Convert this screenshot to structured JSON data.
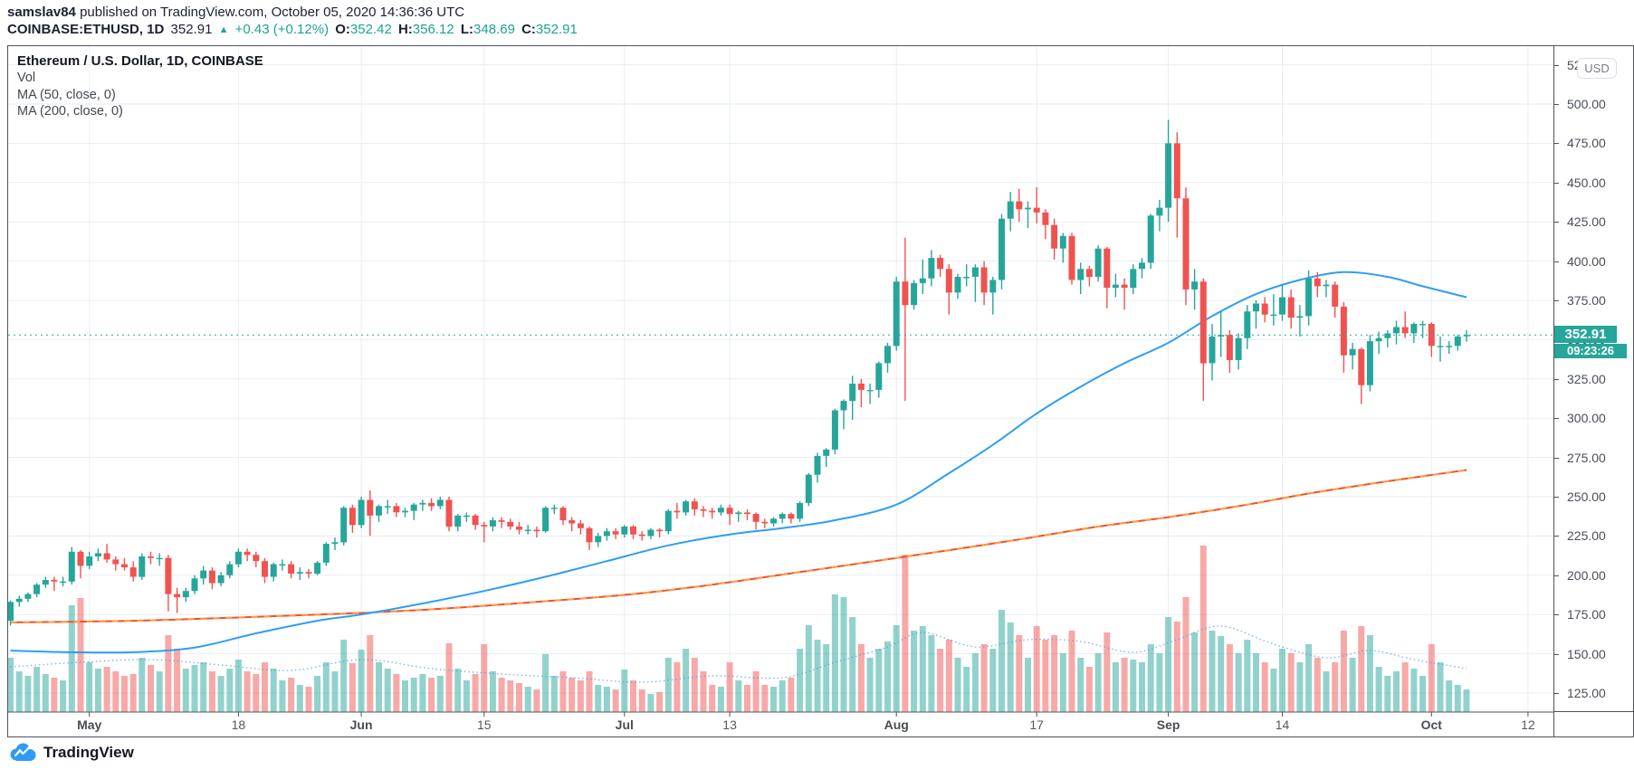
{
  "header": {
    "author": "samslav84",
    "published_text": "published on TradingView.com, October 05, 2020 14:36:36 UTC",
    "symbol": "COINBASE:ETHUSD, 1D",
    "last_price": "352.91",
    "change_icon": "▲",
    "change_text": "+0.43 (+0.12%)",
    "o_label": "O:",
    "o_value": "352.42",
    "h_label": "H:",
    "h_value": "356.12",
    "l_label": "L:",
    "l_value": "348.69",
    "c_label": "C:",
    "c_value": "352.91"
  },
  "legend": {
    "title": "Ethereum / U.S. Dollar, 1D, COINBASE",
    "vol": "Vol",
    "ma50": "MA (50, close, 0)",
    "ma200": "MA (200, close, 0)"
  },
  "price_axis": {
    "currency_button": "USD",
    "badge_price": "352.91",
    "badge_countdown": "09:23:26",
    "tick_labels": [
      "125.00",
      "150.00",
      "175.00",
      "200.00",
      "225.00",
      "250.00",
      "275.00",
      "300.00",
      "325.00",
      "350.00",
      "375.00",
      "400.00",
      "425.00",
      "450.00",
      "475.00",
      "500.00",
      "525.00"
    ]
  },
  "logo": {
    "text": "TradingView"
  },
  "colors": {
    "up": "#26a69a",
    "down": "#ef5350",
    "ma50": "#2e9df7",
    "ma200_base": "#f0502f",
    "ma200_dash": "#ff9c42",
    "vol_ma": "#4c96e8",
    "grid": "#e7edf3",
    "border": "#50535c",
    "last_price_line": "#26a69a",
    "logo_blue": "#2e9cf5",
    "volume_opacity": 0.5
  },
  "chart_data": {
    "type": "candlestick",
    "title": "Ethereum / U.S. Dollar, 1D, COINBASE",
    "symbol": "COINBASE:ETHUSD",
    "interval": "1D",
    "start_date": "2020-04-22",
    "end_date": "2020-10-05",
    "last_price": 352.91,
    "countdown": "09:23:26",
    "price_ticks": [
      125,
      150,
      175,
      200,
      225,
      250,
      275,
      300,
      325,
      350,
      375,
      400,
      425,
      450,
      475,
      500,
      525
    ],
    "ylim": [
      113,
      537
    ],
    "time_ticks": [
      {
        "label": "May",
        "day": 9,
        "month": true
      },
      {
        "label": "18",
        "day": 26,
        "month": false
      },
      {
        "label": "Jun",
        "day": 40,
        "month": true
      },
      {
        "label": "15",
        "day": 54,
        "month": false
      },
      {
        "label": "Jul",
        "day": 70,
        "month": true
      },
      {
        "label": "13",
        "day": 82,
        "month": false
      },
      {
        "label": "Aug",
        "day": 101,
        "month": true
      },
      {
        "label": "17",
        "day": 117,
        "month": false
      },
      {
        "label": "Sep",
        "day": 132,
        "month": true
      },
      {
        "label": "14",
        "day": 145,
        "month": false
      },
      {
        "label": "Oct",
        "day": 162,
        "month": true
      },
      {
        "label": "12",
        "day": 173,
        "month": false
      }
    ],
    "candles": [
      [
        171,
        184,
        168,
        183,
        60
      ],
      [
        183,
        187,
        180,
        185,
        45
      ],
      [
        185,
        189,
        183,
        188,
        40
      ],
      [
        188,
        195,
        186,
        194,
        50
      ],
      [
        194,
        199,
        192,
        197,
        42
      ],
      [
        197,
        199,
        190,
        196,
        38
      ],
      [
        196,
        199,
        193,
        196,
        35
      ],
      [
        196,
        218,
        194,
        215,
        118
      ],
      [
        215,
        216,
        198,
        206,
        126
      ],
      [
        206,
        215,
        204,
        212,
        55
      ],
      [
        212,
        217,
        209,
        214,
        48
      ],
      [
        214,
        220,
        208,
        210,
        50
      ],
      [
        210,
        212,
        203,
        207,
        45
      ],
      [
        207,
        211,
        203,
        205,
        40
      ],
      [
        205,
        209,
        196,
        199,
        42
      ],
      [
        199,
        214,
        197,
        212,
        60
      ],
      [
        212,
        215,
        207,
        211,
        52
      ],
      [
        211,
        214,
        206,
        211,
        45
      ],
      [
        211,
        213,
        177,
        188,
        85
      ],
      [
        188,
        192,
        176,
        186,
        70
      ],
      [
        186,
        192,
        183,
        190,
        48
      ],
      [
        190,
        200,
        188,
        198,
        52
      ],
      [
        198,
        206,
        194,
        203,
        55
      ],
      [
        203,
        205,
        191,
        195,
        45
      ],
      [
        195,
        202,
        193,
        200,
        40
      ],
      [
        200,
        209,
        198,
        207,
        48
      ],
      [
        207,
        217,
        205,
        215,
        58
      ],
      [
        215,
        217,
        209,
        213,
        45
      ],
      [
        213,
        215,
        205,
        209,
        42
      ],
      [
        209,
        211,
        195,
        199,
        55
      ],
      [
        199,
        208,
        196,
        207,
        48
      ],
      [
        207,
        210,
        203,
        207,
        35
      ],
      [
        207,
        209,
        198,
        201,
        38
      ],
      [
        201,
        205,
        197,
        202,
        30
      ],
      [
        202,
        204,
        198,
        201,
        28
      ],
      [
        201,
        209,
        200,
        208,
        40
      ],
      [
        208,
        221,
        206,
        220,
        55
      ],
      [
        220,
        224,
        216,
        221,
        45
      ],
      [
        221,
        244,
        219,
        243,
        80
      ],
      [
        243,
        245,
        227,
        232,
        54
      ],
      [
        232,
        250,
        230,
        248,
        69
      ],
      [
        248,
        254,
        225,
        238,
        85
      ],
      [
        238,
        245,
        234,
        244,
        55
      ],
      [
        244,
        248,
        239,
        244,
        48
      ],
      [
        244,
        246,
        237,
        240,
        42
      ],
      [
        240,
        243,
        237,
        241,
        35
      ],
      [
        241,
        246,
        235,
        245,
        38
      ],
      [
        245,
        248,
        241,
        246,
        42
      ],
      [
        246,
        249,
        241,
        244,
        38
      ],
      [
        244,
        250,
        242,
        248,
        40
      ],
      [
        248,
        250,
        228,
        231,
        76
      ],
      [
        231,
        239,
        228,
        238,
        48
      ],
      [
        238,
        240,
        234,
        238,
        35
      ],
      [
        238,
        239,
        229,
        232,
        42
      ],
      [
        232,
        234,
        221,
        231,
        75
      ],
      [
        231,
        237,
        228,
        235,
        45
      ],
      [
        235,
        237,
        230,
        234,
        38
      ],
      [
        234,
        236,
        229,
        231,
        35
      ],
      [
        231,
        234,
        226,
        229,
        32
      ],
      [
        229,
        232,
        226,
        229,
        28
      ],
      [
        229,
        231,
        224,
        228,
        25
      ],
      [
        228,
        244,
        227,
        243,
        64
      ],
      [
        243,
        245,
        239,
        243,
        40
      ],
      [
        243,
        244,
        232,
        235,
        45
      ],
      [
        235,
        237,
        228,
        233,
        38
      ],
      [
        233,
        235,
        226,
        230,
        35
      ],
      [
        230,
        231,
        216,
        221,
        45
      ],
      [
        221,
        227,
        218,
        225,
        30
      ],
      [
        225,
        230,
        222,
        228,
        28
      ],
      [
        228,
        230,
        223,
        226,
        25
      ],
      [
        226,
        232,
        224,
        231,
        47
      ],
      [
        231,
        232,
        223,
        226,
        35
      ],
      [
        226,
        228,
        222,
        225,
        25
      ],
      [
        225,
        230,
        223,
        229,
        20
      ],
      [
        229,
        230,
        224,
        228,
        22
      ],
      [
        228,
        242,
        226,
        241,
        60
      ],
      [
        241,
        246,
        236,
        240,
        55
      ],
      [
        240,
        248,
        238,
        247,
        70
      ],
      [
        247,
        249,
        238,
        242,
        60
      ],
      [
        242,
        244,
        237,
        241,
        45
      ],
      [
        241,
        243,
        236,
        240,
        30
      ],
      [
        240,
        245,
        238,
        243,
        28
      ],
      [
        243,
        245,
        232,
        239,
        55
      ],
      [
        239,
        241,
        234,
        240,
        35
      ],
      [
        240,
        242,
        235,
        239,
        30
      ],
      [
        239,
        240,
        229,
        234,
        45
      ],
      [
        234,
        236,
        230,
        233,
        30
      ],
      [
        233,
        237,
        231,
        236,
        28
      ],
      [
        236,
        240,
        233,
        239,
        35
      ],
      [
        239,
        240,
        233,
        236,
        38
      ],
      [
        236,
        247,
        234,
        246,
        70
      ],
      [
        246,
        265,
        244,
        264,
        96
      ],
      [
        264,
        278,
        259,
        276,
        80
      ],
      [
        276,
        281,
        269,
        280,
        75
      ],
      [
        280,
        306,
        277,
        305,
        130
      ],
      [
        305,
        312,
        293,
        311,
        127
      ],
      [
        311,
        327,
        299,
        322,
        105
      ],
      [
        322,
        325,
        307,
        318,
        75
      ],
      [
        318,
        322,
        309,
        318,
        60
      ],
      [
        318,
        336,
        313,
        335,
        70
      ],
      [
        335,
        348,
        329,
        346,
        78
      ],
      [
        346,
        390,
        343,
        387,
        96
      ],
      [
        387,
        415,
        311,
        372,
        174
      ],
      [
        372,
        388,
        369,
        386,
        90
      ],
      [
        386,
        401,
        379,
        389,
        95
      ],
      [
        389,
        407,
        384,
        402,
        85
      ],
      [
        402,
        404,
        390,
        395,
        70
      ],
      [
        395,
        398,
        366,
        380,
        80
      ],
      [
        380,
        392,
        376,
        390,
        60
      ],
      [
        390,
        398,
        384,
        390,
        50
      ],
      [
        390,
        398,
        374,
        396,
        65
      ],
      [
        396,
        400,
        372,
        380,
        75
      ],
      [
        380,
        390,
        366,
        388,
        70
      ],
      [
        388,
        430,
        382,
        427,
        113
      ],
      [
        427,
        444,
        419,
        438,
        99
      ],
      [
        438,
        446,
        425,
        433,
        85
      ],
      [
        433,
        438,
        421,
        434,
        60
      ],
      [
        434,
        447,
        424,
        431,
        95
      ],
      [
        431,
        433,
        414,
        423,
        80
      ],
      [
        423,
        427,
        401,
        408,
        85
      ],
      [
        408,
        418,
        399,
        416,
        65
      ],
      [
        416,
        418,
        385,
        388,
        90
      ],
      [
        388,
        399,
        379,
        395,
        60
      ],
      [
        395,
        397,
        384,
        390,
        50
      ],
      [
        390,
        410,
        387,
        408,
        65
      ],
      [
        408,
        409,
        370,
        383,
        88
      ],
      [
        383,
        392,
        377,
        385,
        55
      ],
      [
        385,
        389,
        369,
        383,
        60
      ],
      [
        383,
        398,
        379,
        395,
        58
      ],
      [
        395,
        402,
        389,
        399,
        55
      ],
      [
        399,
        430,
        395,
        429,
        75
      ],
      [
        429,
        439,
        419,
        434,
        65
      ],
      [
        434,
        490,
        425,
        475,
        105
      ],
      [
        475,
        482,
        415,
        440,
        100
      ],
      [
        440,
        447,
        372,
        382,
        127
      ],
      [
        382,
        395,
        369,
        387,
        88
      ],
      [
        387,
        389,
        311,
        335,
        184
      ],
      [
        335,
        360,
        324,
        352,
        90
      ],
      [
        352,
        368,
        339,
        353,
        84
      ],
      [
        353,
        356,
        329,
        337,
        75
      ],
      [
        337,
        354,
        331,
        351,
        65
      ],
      [
        351,
        372,
        344,
        368,
        80
      ],
      [
        368,
        375,
        357,
        373,
        65
      ],
      [
        373,
        377,
        361,
        366,
        55
      ],
      [
        366,
        379,
        359,
        366,
        48
      ],
      [
        366,
        385,
        362,
        377,
        70
      ],
      [
        377,
        382,
        357,
        364,
        65
      ],
      [
        364,
        372,
        352,
        365,
        55
      ],
      [
        365,
        394,
        359,
        389,
        75
      ],
      [
        389,
        393,
        377,
        384,
        60
      ],
      [
        384,
        388,
        377,
        385,
        45
      ],
      [
        385,
        387,
        364,
        371,
        55
      ],
      [
        371,
        374,
        329,
        340,
        90
      ],
      [
        340,
        348,
        331,
        344,
        60
      ],
      [
        344,
        345,
        309,
        321,
        95
      ],
      [
        321,
        353,
        317,
        349,
        85
      ],
      [
        349,
        355,
        341,
        351,
        50
      ],
      [
        351,
        356,
        345,
        354,
        40
      ],
      [
        354,
        362,
        347,
        358,
        45
      ],
      [
        358,
        368,
        351,
        354,
        55
      ],
      [
        354,
        361,
        348,
        360,
        48
      ],
      [
        360,
        362,
        351,
        360,
        40
      ],
      [
        360,
        361,
        339,
        346,
        75
      ],
      [
        346,
        352,
        336,
        346,
        55
      ],
      [
        346,
        349,
        341,
        346,
        35
      ],
      [
        346,
        353,
        343,
        352,
        30
      ],
      [
        352.42,
        356.12,
        348.69,
        352.91,
        25
      ]
    ],
    "ma50_anchors": [
      [
        0,
        152
      ],
      [
        7,
        151
      ],
      [
        14,
        151
      ],
      [
        21,
        154
      ],
      [
        28,
        163
      ],
      [
        35,
        171
      ],
      [
        40,
        175
      ],
      [
        47,
        182
      ],
      [
        54,
        190
      ],
      [
        61,
        199
      ],
      [
        68,
        209
      ],
      [
        75,
        219
      ],
      [
        82,
        226
      ],
      [
        88,
        230
      ],
      [
        94,
        235
      ],
      [
        101,
        245
      ],
      [
        107,
        265
      ],
      [
        112,
        283
      ],
      [
        117,
        303
      ],
      [
        122,
        320
      ],
      [
        127,
        335
      ],
      [
        132,
        348
      ],
      [
        137,
        365
      ],
      [
        142,
        379
      ],
      [
        147,
        388
      ],
      [
        152,
        393
      ],
      [
        157,
        390
      ],
      [
        161,
        384
      ],
      [
        166,
        377
      ]
    ],
    "ma200_anchors": [
      [
        0,
        170
      ],
      [
        14,
        171
      ],
      [
        28,
        173.5
      ],
      [
        40,
        176
      ],
      [
        50,
        179
      ],
      [
        60,
        183
      ],
      [
        71,
        188
      ],
      [
        80,
        194
      ],
      [
        90,
        202
      ],
      [
        101,
        211
      ],
      [
        113,
        221
      ],
      [
        124,
        231
      ],
      [
        132,
        237
      ],
      [
        140,
        244
      ],
      [
        148,
        252
      ],
      [
        156,
        259
      ],
      [
        161,
        263
      ],
      [
        166,
        267
      ]
    ],
    "vol_ma_anchors": [
      [
        0,
        50
      ],
      [
        8,
        55
      ],
      [
        16,
        58
      ],
      [
        24,
        52
      ],
      [
        32,
        46
      ],
      [
        40,
        58
      ],
      [
        48,
        48
      ],
      [
        56,
        42
      ],
      [
        64,
        38
      ],
      [
        72,
        33
      ],
      [
        80,
        40
      ],
      [
        88,
        38
      ],
      [
        94,
        55
      ],
      [
        100,
        72
      ],
      [
        104,
        88
      ],
      [
        110,
        72
      ],
      [
        116,
        80
      ],
      [
        122,
        78
      ],
      [
        128,
        66
      ],
      [
        133,
        80
      ],
      [
        138,
        95
      ],
      [
        144,
        75
      ],
      [
        150,
        60
      ],
      [
        155,
        68
      ],
      [
        160,
        58
      ],
      [
        166,
        48
      ]
    ]
  }
}
